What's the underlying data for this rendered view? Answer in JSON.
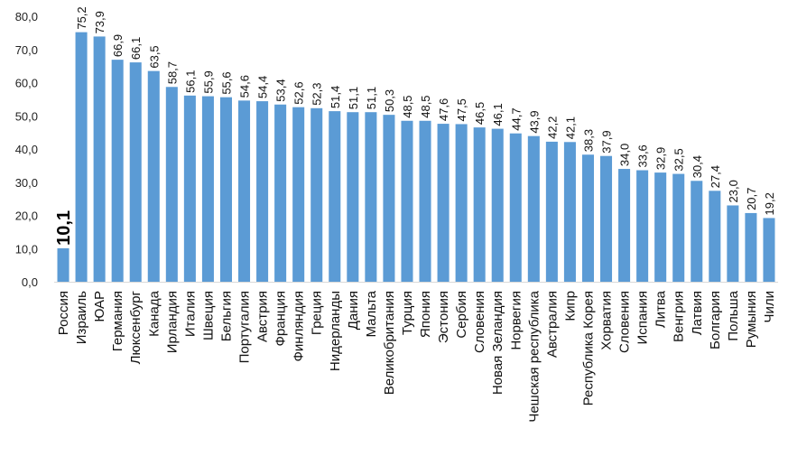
{
  "chart_data": {
    "type": "bar",
    "title": "",
    "xlabel": "",
    "ylabel": "",
    "ylim": [
      0,
      80
    ],
    "yticks": [
      "0,0",
      "10,0",
      "20,0",
      "30,0",
      "40,0",
      "50,0",
      "60,0",
      "70,0",
      "80,0"
    ],
    "bar_color": "#5b9bd5",
    "highlight_category": "Россия",
    "grid": false,
    "legend": "none",
    "categories": [
      "Россия",
      "Израиль",
      "ЮАР",
      "Германия",
      "Люксенбург",
      "Канада",
      "Ирландия",
      "Италия",
      "Швеция",
      "Бельгия",
      "Португалия",
      "Австрия",
      "Франция",
      "Финляндия",
      "Греция",
      "Нидерланды",
      "Дания",
      "Мальта",
      "Великобритания",
      "Турция",
      "Япония",
      "Эстония",
      "Сербия",
      "Словения",
      "Новая Зеландия",
      "Норвегия",
      "Чешская республика",
      "Австралия",
      "Кипр",
      "Республика Корея",
      "Хорватия",
      "Словения",
      "Испания",
      "Литва",
      "Венгрия",
      "Латвия",
      "Болгария",
      "Польша",
      "Румыния",
      "Чили"
    ],
    "values": [
      10.1,
      75.2,
      73.9,
      66.9,
      66.1,
      63.5,
      58.7,
      56.1,
      55.9,
      55.6,
      54.6,
      54.4,
      53.4,
      52.6,
      52.3,
      51.4,
      51.1,
      51.1,
      50.3,
      48.5,
      48.5,
      47.6,
      47.5,
      46.5,
      46.1,
      44.7,
      43.9,
      42.2,
      42.1,
      38.3,
      37.9,
      34.0,
      33.6,
      32.9,
      32.5,
      30.4,
      27.4,
      23.0,
      20.7,
      19.2
    ],
    "value_labels": [
      "10,1",
      "75,2",
      "73,9",
      "66,9",
      "66,1",
      "63,5",
      "58,7",
      "56,1",
      "55,9",
      "55,6",
      "54,6",
      "54,4",
      "53,4",
      "52,6",
      "52,3",
      "51,4",
      "51,1",
      "51,1",
      "50,3",
      "48,5",
      "48,5",
      "47,6",
      "47,5",
      "46,5",
      "46,1",
      "44,7",
      "43,9",
      "42,2",
      "42,1",
      "38,3",
      "37,9",
      "34,0",
      "33,6",
      "32,9",
      "32,5",
      "30,4",
      "27,4",
      "23,0",
      "20,7",
      "19,2"
    ]
  }
}
